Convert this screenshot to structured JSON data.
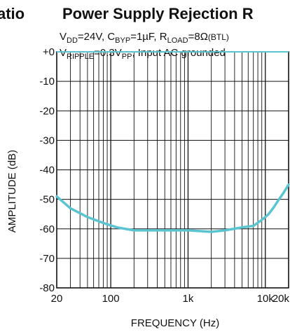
{
  "header": {
    "left_fragment": "atio",
    "title": "Power Supply Rejection R"
  },
  "subtitle": {
    "line1": {
      "vdd_sym": "V",
      "vdd_sub": "DD",
      "vdd_val": "=24V, ",
      "cbyp_sym": "C",
      "cbyp_sub": "BYP",
      "cbyp_val": "=1µF, ",
      "rload_sym": "R",
      "rload_sub": "LOAD",
      "rload_val": "=8Ω",
      "btl": "(BTL)"
    },
    "line2": {
      "vr_sym": "V",
      "vr_sub": "RIPPLE",
      "vr_val": "=0.3V",
      "vpp_sub": "PP",
      "rest": ", Input AC grounded"
    }
  },
  "chart_data": {
    "type": "line",
    "title": "Power Supply Rejection R",
    "xlabel": "FREQUENCY (Hz)",
    "ylabel": "AMPLITUDE (dB)",
    "xscale": "log",
    "xlim": [
      20,
      20000
    ],
    "ylim": [
      -80,
      0
    ],
    "grid": true,
    "x_ticks": [
      {
        "value": 20,
        "label": "20"
      },
      {
        "value": 100,
        "label": "100"
      },
      {
        "value": 1000,
        "label": "1k"
      },
      {
        "value": 10000,
        "label": "10k"
      },
      {
        "value": 20000,
        "label": "20k"
      }
    ],
    "y_ticks": [
      {
        "value": 0,
        "label": "+0"
      },
      {
        "value": -10,
        "label": "-10"
      },
      {
        "value": -20,
        "label": "-20"
      },
      {
        "value": -30,
        "label": "-30"
      },
      {
        "value": -40,
        "label": "-40"
      },
      {
        "value": -50,
        "label": "-50"
      },
      {
        "value": -60,
        "label": "-60"
      },
      {
        "value": -70,
        "label": "-70"
      },
      {
        "value": -80,
        "label": "-80"
      }
    ],
    "series": [
      {
        "color": "#5bc4d1",
        "x": [
          20,
          30,
          50,
          80,
          120,
          200,
          300,
          500,
          1000,
          2000,
          3000,
          5000,
          7000,
          9000,
          11000,
          13000,
          15000,
          17000,
          20000
        ],
        "y": [
          -49,
          -53,
          -56,
          -58,
          -59.5,
          -60.5,
          -60.5,
          -60.5,
          -60.5,
          -61,
          -60.5,
          -59.5,
          -59,
          -57,
          -55,
          -52.5,
          -50,
          -48,
          -45
        ]
      }
    ]
  }
}
